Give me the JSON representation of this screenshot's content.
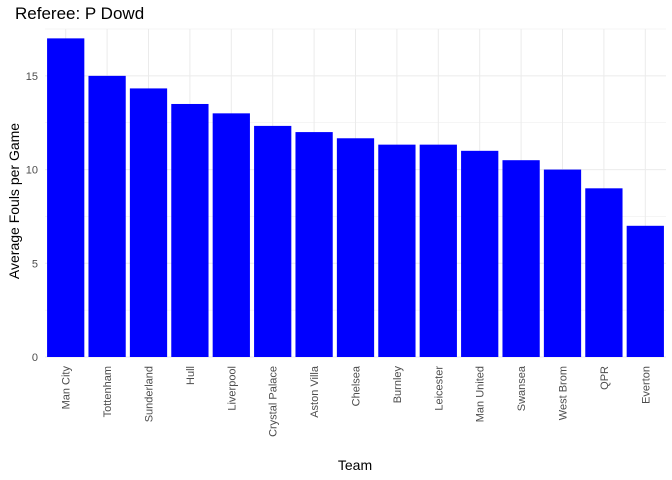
{
  "chart_data": {
    "type": "bar",
    "title": "Referee: P Dowd",
    "xlabel": "Team",
    "ylabel": "Average Fouls per Game",
    "categories": [
      "Man City",
      "Tottenham",
      "Sunderland",
      "Hull",
      "Liverpool",
      "Crystal Palace",
      "Aston Villa",
      "Chelsea",
      "Burnley",
      "Leicester",
      "Man United",
      "Swansea",
      "West Brom",
      "QPR",
      "Everton"
    ],
    "values": [
      17,
      15,
      14.33,
      13.5,
      13,
      12.33,
      12,
      11.67,
      11.33,
      11.33,
      11,
      10.5,
      10,
      9,
      7
    ],
    "ylim": [
      0,
      17.5
    ],
    "yticks": [
      0,
      5,
      10,
      15
    ],
    "grid": true,
    "bar_color": "#0000ff",
    "grid_color": "#ebebeb"
  }
}
